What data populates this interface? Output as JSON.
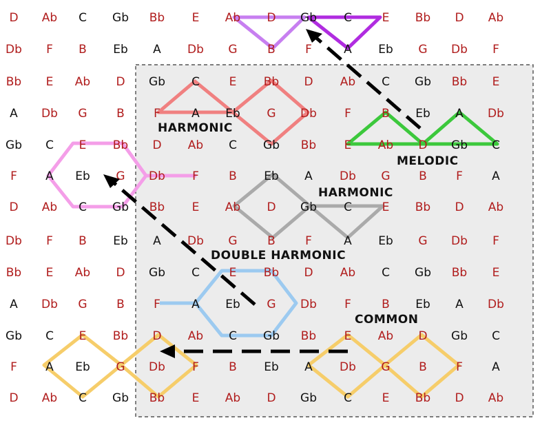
{
  "colors": {
    "note_red": "#b01c1c",
    "note_black": "#111111",
    "region_fill": "#ececec",
    "region_border": "#333333",
    "purple": "#c77ff0",
    "purple_dark": "#b02ce0",
    "red_shape": "#f08080",
    "green": "#3cc83c",
    "gray": "#aaaaaa",
    "pink": "#f49ee8",
    "blue": "#9ccaf0",
    "yellow": "#f6cd6a",
    "arrow": "#000000"
  },
  "grid": {
    "rows": [
      [
        "D",
        "Ab",
        "C",
        "Gb",
        "Bb",
        "E",
        "Ab",
        "D",
        "Gb",
        "C",
        "E",
        "Bb",
        "D",
        "Ab"
      ],
      [
        "Db",
        "F",
        "B",
        "Eb",
        "A",
        "Db",
        "G",
        "B",
        "F",
        "A",
        "Eb",
        "G",
        "Db",
        "F"
      ],
      [
        "Bb",
        "E",
        "Ab",
        "D",
        "Gb",
        "C",
        "E",
        "Bb",
        "D",
        "Ab",
        "C",
        "Gb",
        "Bb",
        "E"
      ],
      [
        "A",
        "Db",
        "G",
        "B",
        "F",
        "A",
        "Eb",
        "G",
        "Db",
        "F",
        "B",
        "Eb",
        "A",
        "Db"
      ],
      [
        "Gb",
        "C",
        "E",
        "Bb",
        "D",
        "Ab",
        "C",
        "Gb",
        "Bb",
        "E",
        "Ab",
        "D",
        "Gb",
        "C"
      ],
      [
        "F",
        "A",
        "Eb",
        "G",
        "Db",
        "F",
        "B",
        "Eb",
        "A",
        "Db",
        "G",
        "B",
        "F",
        "A"
      ],
      [
        "D",
        "Ab",
        "C",
        "Gb",
        "Bb",
        "E",
        "Ab",
        "D",
        "Gb",
        "C",
        "E",
        "Bb",
        "D",
        "Ab"
      ],
      [
        "Db",
        "F",
        "B",
        "Eb",
        "A",
        "Db",
        "G",
        "B",
        "F",
        "A",
        "Eb",
        "G",
        "Db",
        "F"
      ],
      [
        "Bb",
        "E",
        "Ab",
        "D",
        "Gb",
        "C",
        "E",
        "Bb",
        "D",
        "Ab",
        "C",
        "Gb",
        "Bb",
        "E"
      ],
      [
        "A",
        "Db",
        "G",
        "B",
        "F",
        "A",
        "Eb",
        "G",
        "Db",
        "F",
        "B",
        "Eb",
        "A",
        "Db"
      ],
      [
        "Gb",
        "C",
        "E",
        "Bb",
        "D",
        "Ab",
        "C",
        "Gb",
        "Bb",
        "E",
        "Ab",
        "D",
        "Gb",
        "C"
      ],
      [
        "F",
        "A",
        "Eb",
        "G",
        "Db",
        "F",
        "B",
        "Eb",
        "A",
        "Db",
        "G",
        "B",
        "F",
        "A"
      ],
      [
        "D",
        "Ab",
        "C",
        "Gb",
        "Bb",
        "E",
        "Ab",
        "D",
        "Gb",
        "C",
        "E",
        "Bb",
        "D",
        "Ab"
      ]
    ],
    "red_notes": [
      "D",
      "F",
      "Ab",
      "B",
      "Db",
      "E",
      "G",
      "Bb"
    ]
  },
  "labels": {
    "harmonic_1": "HARMONIC",
    "melodic": "MELODIC",
    "harmonic_2": "HARMONIC",
    "double_harmonic": "DOUBLE HARMONIC",
    "common": "COMMON"
  }
}
